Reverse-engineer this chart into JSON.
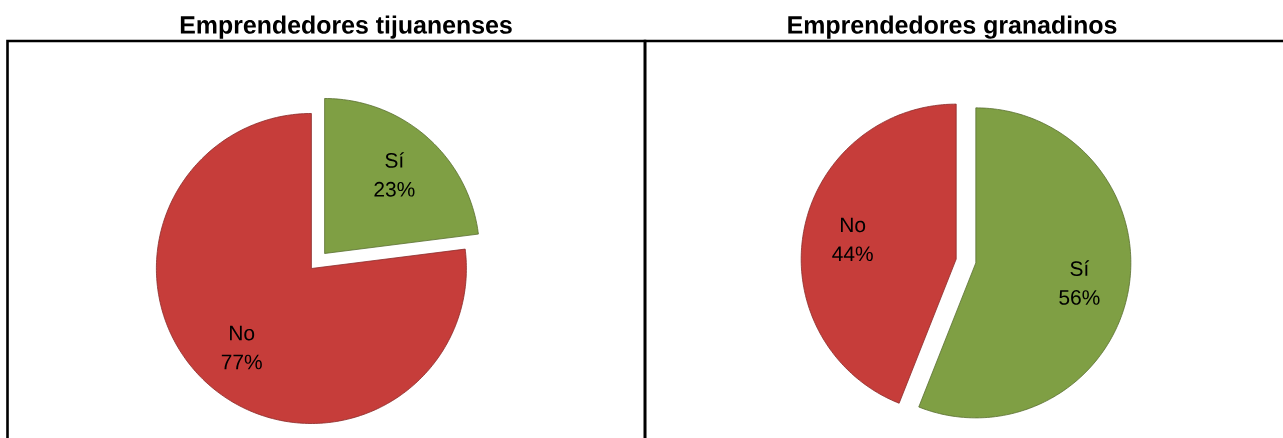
{
  "chart_data": [
    {
      "type": "pie",
      "title": "Emprendedores tijuanenses",
      "categories": [
        "Sí",
        "No"
      ],
      "values": [
        23,
        77
      ],
      "colors": [
        "#7f9f44",
        "#c63d3a"
      ],
      "value_labels": [
        "23%",
        "77%"
      ]
    },
    {
      "type": "pie",
      "title": "Emprendedores granadinos",
      "categories": [
        "Sí",
        "No"
      ],
      "values": [
        56,
        44
      ],
      "colors": [
        "#7f9f44",
        "#c63d3a"
      ],
      "value_labels": [
        "56%",
        "44%"
      ]
    }
  ]
}
